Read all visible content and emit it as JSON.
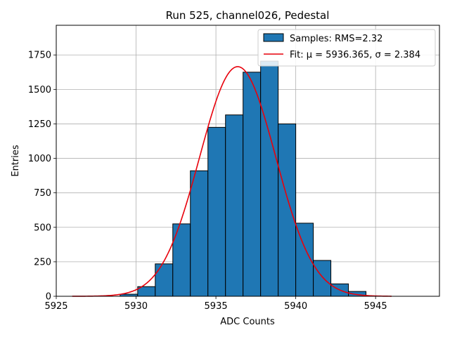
{
  "chart_data": {
    "type": "bar",
    "title": "Run 525, channel026, Pedestal",
    "xlabel": "ADC Counts",
    "ylabel": "Entries",
    "xlim": [
      5925,
      5949
    ],
    "ylim": [
      0,
      1965
    ],
    "grid": true,
    "legend_position": "top-right",
    "x_ticks": [
      5925,
      5930,
      5935,
      5940,
      5945
    ],
    "y_ticks": [
      0,
      250,
      500,
      750,
      1000,
      1250,
      1500,
      1750
    ],
    "histogram": {
      "name": "Samples: RMS=2.32",
      "bin_width": 1.1,
      "bin_left_edges": [
        5929.0,
        5930.1,
        5931.2,
        5932.3,
        5933.4,
        5934.5,
        5935.6,
        5936.7,
        5937.8,
        5938.9,
        5940.0,
        5941.1,
        5942.2,
        5943.3
      ],
      "values": [
        15,
        70,
        235,
        525,
        910,
        1225,
        1315,
        1625,
        1705,
        1250,
        530,
        260,
        90,
        35
      ],
      "color": "#1f77b4",
      "edge_color": "#000000"
    },
    "fit": {
      "name": "Fit: μ = 5936.365, σ = 2.384",
      "mu": 5936.365,
      "sigma": 2.384,
      "amplitude": 1665,
      "x_range": [
        5926,
        5946
      ],
      "color": "#e8000b"
    }
  }
}
